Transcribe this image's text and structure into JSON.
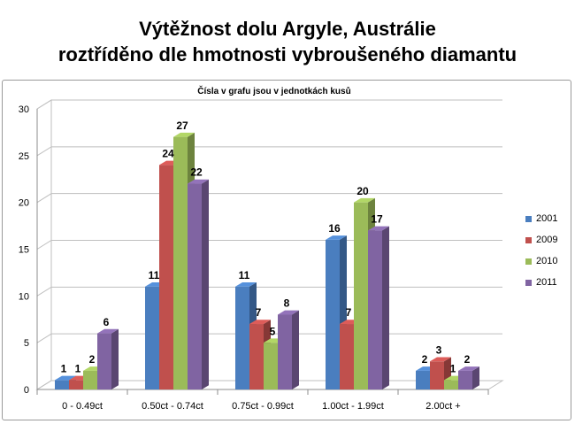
{
  "title_line1": "Výtěžnost dolu Argyle, Austrálie",
  "title_line2": "roztříděno dle hmotnosti vybroušeného diamantu",
  "chart_data": {
    "type": "bar",
    "title": "Čísla v grafu jsou v jednotkách kusů",
    "xlabel": "",
    "ylabel": "",
    "categories": [
      "0 - 0.49ct",
      "0.50ct - 0.74ct",
      "0.75ct - 0.99ct",
      "1.00ct - 1.99ct",
      "2.00ct +"
    ],
    "series": [
      {
        "name": "2001",
        "color": "#4a7ebf",
        "values": [
          1,
          11,
          11,
          16,
          2
        ]
      },
      {
        "name": "2009",
        "color": "#c0504d",
        "values": [
          1,
          24,
          7,
          7,
          3
        ]
      },
      {
        "name": "2010",
        "color": "#9bbb59",
        "values": [
          2,
          27,
          5,
          20,
          1
        ]
      },
      {
        "name": "2011",
        "color": "#8064a2",
        "values": [
          6,
          22,
          8,
          17,
          2
        ]
      }
    ],
    "ylim": [
      0,
      30
    ],
    "yticks": [
      0,
      5,
      10,
      15,
      20,
      25,
      30
    ],
    "grid": true,
    "legend_position": "right",
    "style": "3d-clustered-column"
  }
}
